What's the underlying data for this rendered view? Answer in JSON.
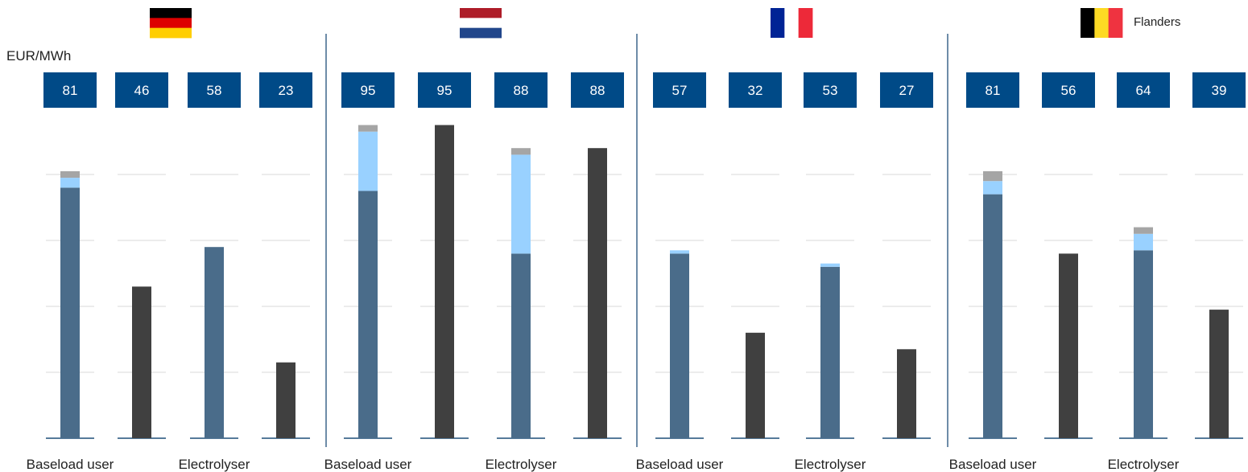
{
  "colors": {
    "background": "#ffffff",
    "box_fill": "#004a87",
    "box_text": "#ffffff",
    "bar_base": "#4a6c8a",
    "bar_light_blue": "#99d1ff",
    "bar_grey": "#a5a5a5",
    "bar_dark": "#404040",
    "gridline": "#d9d9d9",
    "axis_line": "#1f4e79",
    "divider": "#1f4e79"
  },
  "header": {
    "unit_label": "EUR/MWh",
    "flanders_label": "Flanders"
  },
  "chart_data": {
    "type": "bar",
    "stacked": true,
    "ylabel": "EUR/MWh",
    "ylim": [
      0,
      100
    ],
    "grid": true,
    "category_labels": [
      "Baseload user",
      "Electrolyser"
    ],
    "groups": [
      {
        "flag": "germany-flag-icon",
        "flag_colors": [
          "#000000",
          "#dd0000",
          "#ffce00"
        ],
        "flag_orientation": "horizontal",
        "bars": [
          {
            "total": 81,
            "segments": [
              {
                "part": "base",
                "value": 76
              },
              {
                "part": "light_blue",
                "value": 3
              },
              {
                "part": "grey",
                "value": 2
              }
            ]
          },
          {
            "total": 46,
            "segments": [
              {
                "part": "dark",
                "value": 46
              }
            ]
          },
          {
            "total": 58,
            "segments": [
              {
                "part": "base",
                "value": 58
              }
            ]
          },
          {
            "total": 23,
            "segments": [
              {
                "part": "dark",
                "value": 23
              }
            ]
          }
        ]
      },
      {
        "flag": "netherlands-flag-icon",
        "flag_colors": [
          "#ae1c28",
          "#ffffff",
          "#21468b"
        ],
        "flag_orientation": "horizontal",
        "bars": [
          {
            "total": 95,
            "segments": [
              {
                "part": "base",
                "value": 75
              },
              {
                "part": "light_blue",
                "value": 18
              },
              {
                "part": "grey",
                "value": 2
              }
            ]
          },
          {
            "total": 95,
            "segments": [
              {
                "part": "dark",
                "value": 95
              }
            ]
          },
          {
            "total": 88,
            "segments": [
              {
                "part": "base",
                "value": 56
              },
              {
                "part": "light_blue",
                "value": 30
              },
              {
                "part": "grey",
                "value": 2
              }
            ]
          },
          {
            "total": 88,
            "segments": [
              {
                "part": "dark",
                "value": 88
              }
            ]
          }
        ]
      },
      {
        "flag": "france-flag-icon",
        "flag_colors": [
          "#002395",
          "#ffffff",
          "#ed2939"
        ],
        "flag_orientation": "vertical",
        "bars": [
          {
            "total": 57,
            "segments": [
              {
                "part": "base",
                "value": 56
              },
              {
                "part": "light_blue",
                "value": 1
              }
            ]
          },
          {
            "total": 32,
            "segments": [
              {
                "part": "dark",
                "value": 32
              }
            ]
          },
          {
            "total": 53,
            "segments": [
              {
                "part": "base",
                "value": 52
              },
              {
                "part": "light_blue",
                "value": 1
              }
            ]
          },
          {
            "total": 27,
            "segments": [
              {
                "part": "dark",
                "value": 27
              }
            ]
          }
        ]
      },
      {
        "flag": "belgium-flag-icon",
        "flag_colors": [
          "#000000",
          "#fdda24",
          "#ef3340"
        ],
        "flag_orientation": "vertical",
        "bars": [
          {
            "total": 81,
            "segments": [
              {
                "part": "base",
                "value": 74
              },
              {
                "part": "light_blue",
                "value": 4
              },
              {
                "part": "grey",
                "value": 3
              }
            ]
          },
          {
            "total": 56,
            "segments": [
              {
                "part": "dark",
                "value": 56
              }
            ]
          },
          {
            "total": 64,
            "segments": [
              {
                "part": "base",
                "value": 57
              },
              {
                "part": "light_blue",
                "value": 5
              },
              {
                "part": "grey",
                "value": 2
              }
            ]
          },
          {
            "total": 39,
            "segments": [
              {
                "part": "dark",
                "value": 39
              }
            ]
          }
        ]
      }
    ]
  }
}
